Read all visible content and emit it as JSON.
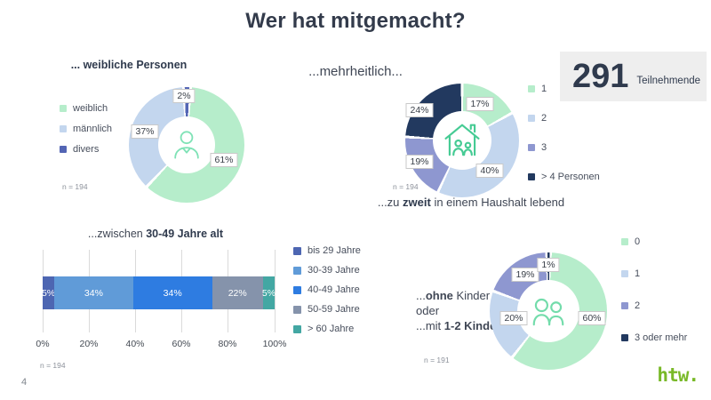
{
  "title": "Wer hat mitgemacht?",
  "participants": {
    "value": "291",
    "label": "Teilnehmende"
  },
  "footer": {
    "page_number": "4",
    "logo_text": "htw."
  },
  "palette": {
    "accent_green": "#79b928",
    "title_color": "#333b4b",
    "mint": "#b6edcb",
    "light_blue": "#c3d6ee",
    "periwinkle": "#8e97d0",
    "navy": "#22395f",
    "indigo": "#5365b4"
  },
  "chart_data": [
    {
      "id": "gender-donut",
      "type": "donut",
      "title": "... weibliche Personen",
      "labels": [
        "weiblich",
        "männlich",
        "divers"
      ],
      "values": [
        61,
        37,
        2
      ],
      "value_labels": [
        "61%",
        "37%",
        "2%"
      ],
      "colors": [
        "#b6edcb",
        "#c3d6ee",
        "#5365b4"
      ],
      "rotation_deg": 4,
      "n": "n = 194",
      "center_icon": "person-icon",
      "legend_position": "left"
    },
    {
      "id": "household-size-donut",
      "type": "donut",
      "header": "...mehrheitlich...",
      "labels": [
        "1",
        "2",
        "3",
        "> 4 Personen"
      ],
      "values": [
        17,
        40,
        19,
        24
      ],
      "value_labels": [
        "17%",
        "40%",
        "19%",
        "24%"
      ],
      "colors": [
        "#b6edcb",
        "#c3d6ee",
        "#8e97d0",
        "#22395f"
      ],
      "rotation_deg": 0,
      "n": "n = 194",
      "center_icon": "house-family-icon",
      "legend_position": "right",
      "caption": {
        "pre": "...zu ",
        "bold": "zweit",
        "post": " in einem Haushalt lebend"
      }
    },
    {
      "id": "age-stacked-bar",
      "type": "stacked-bar",
      "title": {
        "pre": "...zwischen ",
        "bold": "30-49 Jahre alt",
        "post": ""
      },
      "labels": [
        "bis 29 Jahre",
        "30-39 Jahre",
        "40-49 Jahre",
        "50-59 Jahre",
        "> 60 Jahre"
      ],
      "values": [
        5,
        34,
        34,
        22,
        5
      ],
      "value_labels": [
        "5%",
        "34%",
        "34%",
        "22%",
        "5%"
      ],
      "colors": [
        "#4d66b2",
        "#609bd8",
        "#2e7ce1",
        "#8593ab",
        "#43a7a3"
      ],
      "x_ticks": [
        "0%",
        "20%",
        "40%",
        "60%",
        "80%",
        "100%"
      ],
      "xlim": [
        0,
        100
      ],
      "grid": true,
      "n": "n = 194",
      "legend_position": "right"
    },
    {
      "id": "children-donut",
      "type": "donut",
      "labels": [
        "0",
        "1",
        "2",
        "3 oder mehr"
      ],
      "values": [
        60,
        20,
        19,
        1
      ],
      "value_labels": [
        "60%",
        "20%",
        "19%",
        "1%"
      ],
      "colors": [
        "#b6edcb",
        "#c3d6ee",
        "#8e97d0",
        "#22395f"
      ],
      "rotation_deg": 2,
      "n": "n = 191",
      "center_icon": "couple-icon",
      "legend_position": "right",
      "side_text": [
        {
          "pre": "...",
          "bold": "ohne",
          "post": " Kinder"
        },
        {
          "pre": "oder",
          "bold": "",
          "post": ""
        },
        {
          "pre": "...mit ",
          "bold": "1-2 Kindern",
          "post": ""
        }
      ]
    }
  ]
}
